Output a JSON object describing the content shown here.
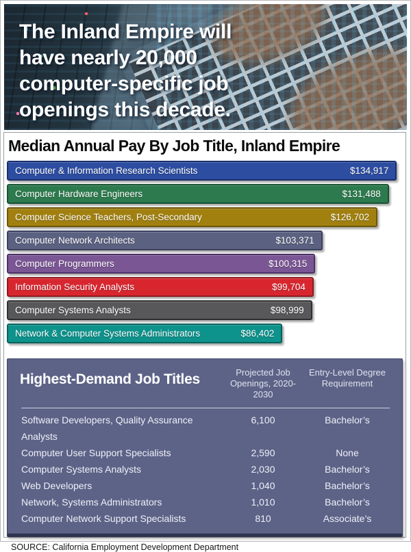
{
  "header": {
    "headline_lines": [
      "The Inland Empire will",
      "have nearly 20,000",
      "computer-specific job",
      "openings this decade."
    ]
  },
  "chart_data": [
    {
      "type": "bar",
      "orientation": "horizontal",
      "title": "Median Annual Pay By Job Title, Inland Empire",
      "categories": [
        "Computer & Information Research Scientists",
        "Computer Hardware Engineers",
        "Computer Science Teachers, Post-Secondary",
        "Computer Network Architects",
        "Computer Programmers",
        "Information Security Analysts",
        "Computer Systems Analysts",
        "Network & Computer Systems Administrators"
      ],
      "values": [
        134917,
        131488,
        126702,
        103371,
        100315,
        99704,
        98999,
        86402
      ],
      "value_labels": [
        "$134,917",
        "$131,488",
        "$126,702",
        "$103,371",
        "$100,315",
        "$99,704",
        "$98,999",
        "$86,402"
      ],
      "bar_fill_colors": [
        "#2d4da1",
        "#2c7a4d",
        "#a1800f",
        "#5b6180",
        "#7a5694",
        "#d8262f",
        "#58585a",
        "#0d928c"
      ],
      "bar_border_colors": [
        "#1a2f6b",
        "#175232",
        "#6f5608",
        "#3b4060",
        "#4e3167",
        "#8e1a20",
        "#2e2e30",
        "#09615c"
      ],
      "xlim": [
        0,
        140000
      ],
      "grid": false,
      "legend": false
    },
    {
      "type": "table",
      "title": "Highest-Demand Job Titles",
      "columns": [
        "Projected Job Openings, 2020-2030",
        "Entry-Level Degree Requirement"
      ],
      "rows": [
        [
          "Software Developers, Quality Assurance Analysts",
          "6,100",
          "Bachelor’s"
        ],
        [
          "Computer User Support Specialists",
          "2,590",
          "None"
        ],
        [
          "Computer Systems Analysts",
          "2,030",
          "Bachelor’s"
        ],
        [
          "Web Developers",
          "1,040",
          "Bachelor’s"
        ],
        [
          "Network, Systems Administrators",
          "1,010",
          "Bachelor’s"
        ],
        [
          "Computer Network Support Specialists",
          "810",
          "Associate’s"
        ]
      ],
      "panel_color": "#5d6387"
    }
  ],
  "footer": {
    "source_note": "SOURCE: California Employment Development Department"
  }
}
